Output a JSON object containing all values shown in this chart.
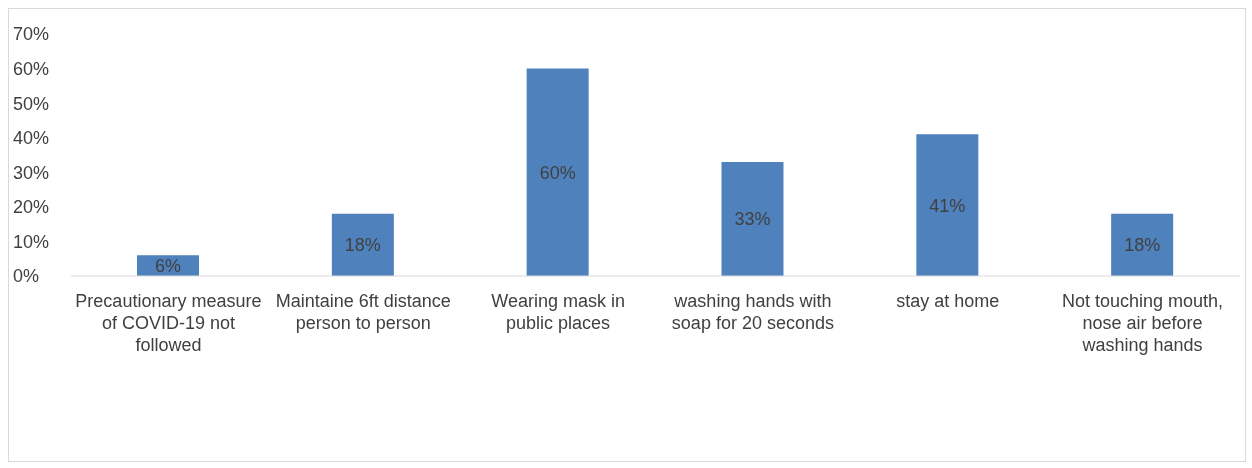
{
  "chart_data": {
    "type": "bar",
    "categories": [
      "Precautionary measure of COVID-19 not followed",
      "Maintaine 6ft distance person to person",
      "Wearing mask in public places",
      "washing hands with soap for 20 seconds",
      "stay at home",
      "Not touching mouth, nose air before washing hands"
    ],
    "values": [
      6,
      18,
      60,
      33,
      41,
      18
    ],
    "value_labels": [
      "6%",
      "18%",
      "60%",
      "33%",
      "41%",
      "18%"
    ],
    "color": "#4f81bd",
    "ylim": [
      0,
      70
    ],
    "yticks": [
      {
        "value": 0,
        "label": "0%"
      },
      {
        "value": 10,
        "label": "10%"
      },
      {
        "value": 20,
        "label": "20%"
      },
      {
        "value": 30,
        "label": "30%"
      },
      {
        "value": 40,
        "label": "40%"
      },
      {
        "value": 50,
        "label": "50%"
      },
      {
        "value": 60,
        "label": "60%"
      },
      {
        "value": 70,
        "label": "70%"
      }
    ],
    "grid": false,
    "legend": false
  }
}
